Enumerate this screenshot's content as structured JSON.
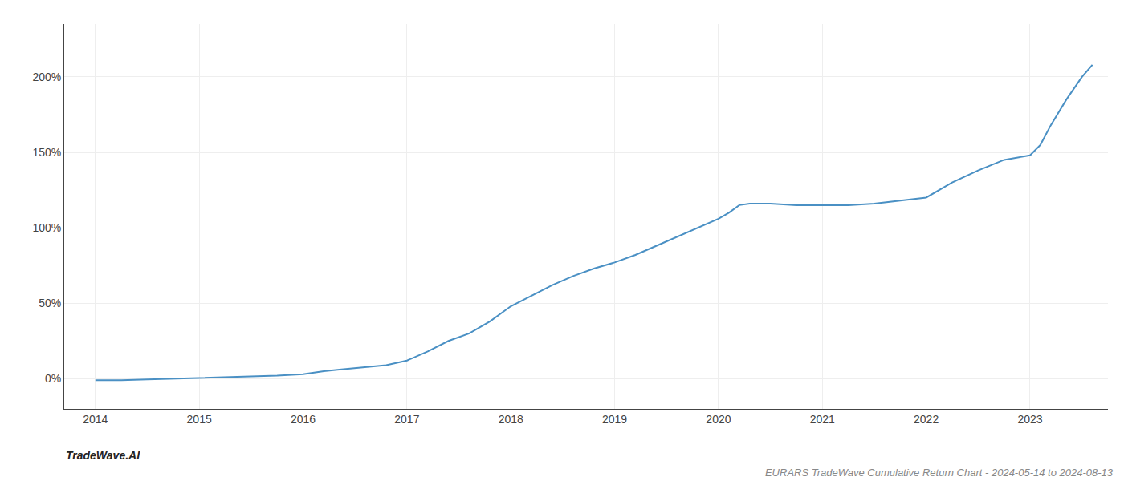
{
  "chart_data": {
    "type": "line",
    "title": "EURARS TradeWave Cumulative Return Chart - 2024-05-14 to 2024-08-13",
    "annotations": [
      "TradeWave.AI"
    ],
    "color": "#4a90c4",
    "x": [
      2014.0,
      2014.25,
      2014.5,
      2014.75,
      2015.0,
      2015.25,
      2015.5,
      2015.75,
      2016.0,
      2016.1,
      2016.2,
      2016.35,
      2016.5,
      2016.65,
      2016.8,
      2017.0,
      2017.2,
      2017.4,
      2017.6,
      2017.8,
      2018.0,
      2018.2,
      2018.4,
      2018.6,
      2018.8,
      2019.0,
      2019.2,
      2019.4,
      2019.6,
      2019.8,
      2020.0,
      2020.1,
      2020.2,
      2020.3,
      2020.5,
      2020.75,
      2021.0,
      2021.25,
      2021.5,
      2021.75,
      2022.0,
      2022.25,
      2022.5,
      2022.75,
      2023.0,
      2023.1,
      2023.2,
      2023.35,
      2023.5,
      2023.6
    ],
    "values": [
      -1,
      -1,
      -0.5,
      0,
      0.5,
      1,
      1.5,
      2,
      3,
      4,
      5,
      6,
      7,
      8,
      9,
      12,
      18,
      25,
      30,
      38,
      48,
      55,
      62,
      68,
      73,
      77,
      82,
      88,
      94,
      100,
      106,
      110,
      115,
      116,
      116,
      115,
      115,
      115,
      116,
      118,
      120,
      130,
      138,
      145,
      148,
      155,
      168,
      185,
      200,
      208
    ],
    "xlim": [
      2013.7,
      2023.75
    ],
    "ylim": [
      -20,
      235
    ],
    "xticks": [
      2014,
      2015,
      2016,
      2017,
      2018,
      2019,
      2020,
      2021,
      2022,
      2023
    ],
    "yticks": [
      {
        "value": 0,
        "label": "0%"
      },
      {
        "value": 50,
        "label": "50%"
      },
      {
        "value": 100,
        "label": "100%"
      },
      {
        "value": 150,
        "label": "150%"
      },
      {
        "value": 200,
        "label": "200%"
      }
    ],
    "grid": true
  }
}
